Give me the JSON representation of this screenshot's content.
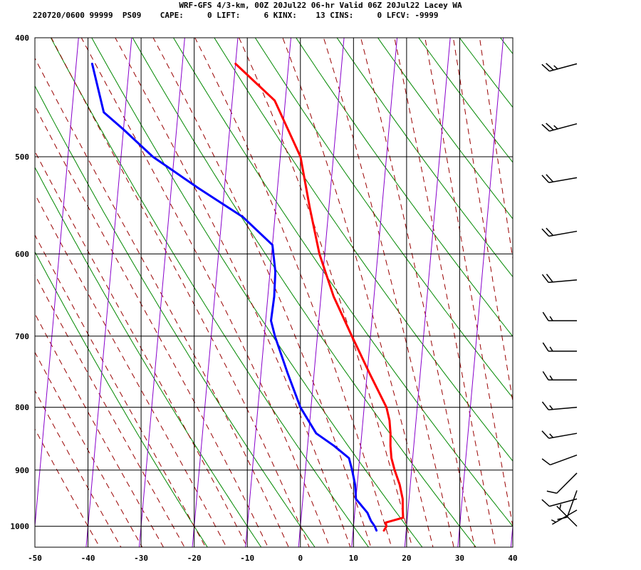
{
  "header": {
    "title": "WRF-GFS 4/3-km, 00Z 20Jul22 06-hr Valid 06Z 20Jul22 Lacey WA",
    "indices": "220720/0600 99999  PS09    CAPE:     0 LIFT:     6 KINX:    13 CINS:     0 LFCV: -9999"
  },
  "chart_data": {
    "type": "line",
    "subtype": "skew-t log-p sounding",
    "title": "WRF-GFS 4/3-km, 00Z 20Jul22 06-hr Valid 06Z 20Jul22 Lacey WA",
    "xlabel": "",
    "ylabel": "",
    "x_ticks": [
      -50,
      -40,
      -30,
      -20,
      -10,
      0,
      10,
      20,
      30,
      40
    ],
    "xlim": [
      -50,
      40
    ],
    "y_ticks": [
      400,
      500,
      600,
      700,
      800,
      900,
      1000
    ],
    "ylim": [
      1040,
      400
    ],
    "y_scale": "log",
    "x_tick_labels": [
      "-50",
      "-40",
      "-30",
      "-20",
      "-10",
      "0",
      "10",
      "20",
      "30",
      "40"
    ],
    "y_tick_labels": [
      "400",
      "500",
      "600",
      "700",
      "800",
      "900",
      "1000"
    ],
    "grid": true,
    "colors": {
      "temperature": "#ff0000",
      "dewpoint": "#0000ff",
      "isotherm_skewed": "#8800cc",
      "dry_adiabat": "#008800",
      "moist_adiabat": "#990000",
      "grid": "#000000"
    },
    "series": [
      {
        "key": "temperature",
        "points": [
          [
            1008,
            15.8
          ],
          [
            1000,
            16.2
          ],
          [
            993,
            16.0
          ],
          [
            984,
            19.2
          ],
          [
            970,
            19.0
          ],
          [
            950,
            18.8
          ],
          [
            925,
            18.0
          ],
          [
            900,
            16.8
          ],
          [
            880,
            16.0
          ],
          [
            860,
            15.6
          ],
          [
            840,
            15.4
          ],
          [
            820,
            15.0
          ],
          [
            800,
            14.2
          ],
          [
            750,
            10.4
          ],
          [
            700,
            6.5
          ],
          [
            650,
            2.4
          ],
          [
            600,
            -1.0
          ],
          [
            550,
            -3.6
          ],
          [
            500,
            -6.2
          ],
          [
            450,
            -12.0
          ],
          [
            420,
            -20.0
          ]
        ]
      },
      {
        "key": "dewpoint",
        "points": [
          [
            1008,
            14.4
          ],
          [
            1000,
            14.0
          ],
          [
            990,
            13.2
          ],
          [
            975,
            12.4
          ],
          [
            950,
            10.0
          ],
          [
            925,
            9.6
          ],
          [
            900,
            8.8
          ],
          [
            880,
            8.0
          ],
          [
            860,
            5.0
          ],
          [
            840,
            1.4
          ],
          [
            800,
            -2.0
          ],
          [
            750,
            -5.0
          ],
          [
            700,
            -8.0
          ],
          [
            680,
            -9.0
          ],
          [
            650,
            -8.8
          ],
          [
            620,
            -9.0
          ],
          [
            590,
            -10.0
          ],
          [
            560,
            -16.0
          ],
          [
            530,
            -25.0
          ],
          [
            500,
            -34.0
          ],
          [
            475,
            -40.0
          ],
          [
            460,
            -44.0
          ],
          [
            420,
            -47.0
          ]
        ]
      }
    ],
    "wind_barbs": [
      {
        "pressure": 420,
        "direction": 255,
        "speed": 25
      },
      {
        "pressure": 470,
        "direction": 255,
        "speed": 25
      },
      {
        "pressure": 520,
        "direction": 260,
        "speed": 20
      },
      {
        "pressure": 575,
        "direction": 260,
        "speed": 20
      },
      {
        "pressure": 630,
        "direction": 265,
        "speed": 20
      },
      {
        "pressure": 680,
        "direction": 270,
        "speed": 15
      },
      {
        "pressure": 720,
        "direction": 270,
        "speed": 15
      },
      {
        "pressure": 760,
        "direction": 270,
        "speed": 15
      },
      {
        "pressure": 800,
        "direction": 265,
        "speed": 15
      },
      {
        "pressure": 840,
        "direction": 260,
        "speed": 15
      },
      {
        "pressure": 875,
        "direction": 250,
        "speed": 10
      },
      {
        "pressure": 905,
        "direction": 225,
        "speed": 10
      },
      {
        "pressure": 935,
        "direction": 200,
        "speed": 10
      },
      {
        "pressure": 950,
        "direction": 255,
        "speed": 10
      },
      {
        "pressure": 970,
        "direction": 240,
        "speed": 5
      },
      {
        "pressure": 1000,
        "direction": 315,
        "speed": 5
      }
    ]
  }
}
